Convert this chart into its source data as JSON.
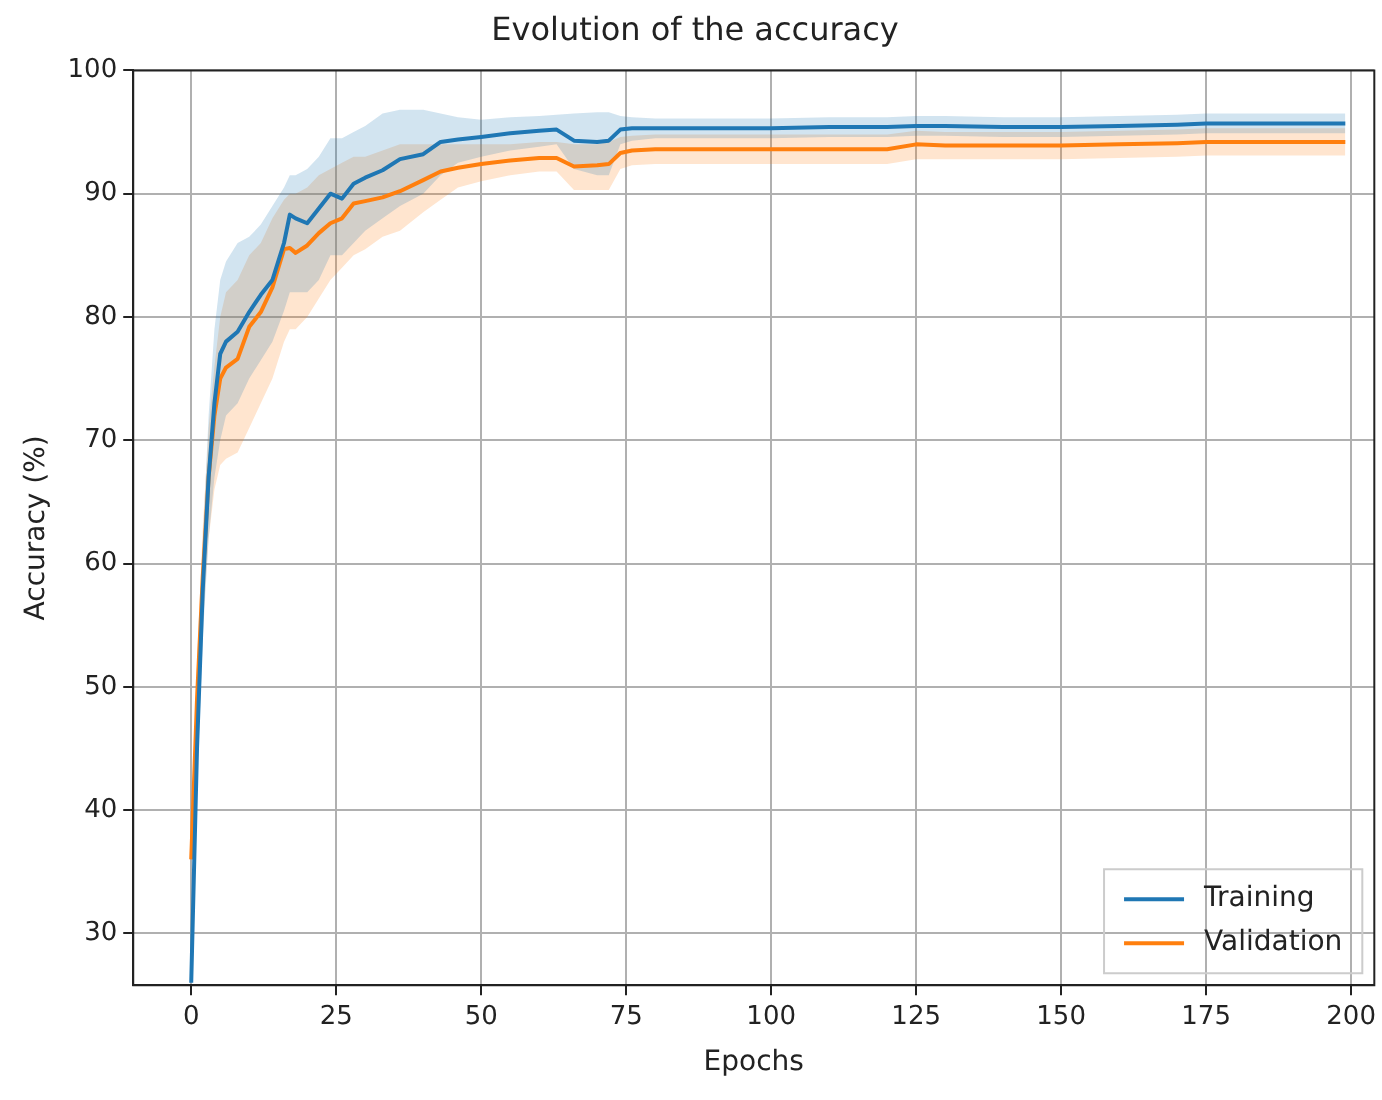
{
  "chart_data": {
    "type": "line",
    "title": "Evolution of the accuracy",
    "xlabel": "Epochs",
    "ylabel": "Accuracy (%)",
    "x": [
      0,
      1,
      2,
      3,
      4,
      5,
      6,
      8,
      10,
      12,
      14,
      16,
      17,
      18,
      20,
      22,
      24,
      26,
      28,
      30,
      33,
      36,
      40,
      43,
      46,
      50,
      55,
      60,
      63,
      66,
      70,
      72,
      74,
      76,
      80,
      90,
      100,
      110,
      120,
      125,
      130,
      140,
      150,
      160,
      170,
      175,
      180,
      190,
      199
    ],
    "series": [
      {
        "name": "Training",
        "color": "#1f77b4",
        "values": [
          26,
          45,
          58,
          67,
          73,
          77,
          78,
          78.8,
          80.4,
          81.8,
          83,
          86,
          88.3,
          88,
          87.6,
          88.8,
          90,
          89.6,
          90.8,
          91.3,
          91.9,
          92.8,
          93.2,
          94.2,
          94.4,
          94.6,
          94.9,
          95.1,
          95.2,
          94.3,
          94.2,
          94.3,
          95.2,
          95.3,
          95.3,
          95.3,
          95.3,
          95.4,
          95.4,
          95.5,
          95.5,
          95.4,
          95.4,
          95.5,
          95.6,
          95.7,
          95.7,
          95.7,
          95.7
        ],
        "lower": [
          26,
          42,
          54,
          62,
          67,
          70,
          72,
          73,
          75,
          76.5,
          78,
          80.5,
          82,
          82,
          82,
          83,
          85,
          85,
          86,
          87,
          88,
          89,
          90,
          91.5,
          92.5,
          93,
          93.5,
          93.8,
          94,
          92,
          91.5,
          91.5,
          94,
          94.3,
          94.5,
          94.5,
          94.5,
          94.6,
          94.6,
          94.7,
          94.7,
          94.6,
          94.6,
          94.7,
          94.8,
          94.9,
          94.9,
          94.9,
          94.9
        ],
        "upper": [
          26,
          48,
          62,
          72,
          79,
          83,
          84.5,
          86,
          86.5,
          87.5,
          89,
          90.5,
          91.5,
          91.5,
          92,
          93,
          94.5,
          94.5,
          95,
          95.5,
          96.5,
          96.8,
          96.8,
          96.5,
          96.2,
          96,
          96.2,
          96.3,
          96.4,
          96.5,
          96.6,
          96.6,
          96.3,
          96.2,
          96.1,
          96.1,
          96.1,
          96.2,
          96.2,
          96.3,
          96.3,
          96.2,
          96.2,
          96.3,
          96.4,
          96.5,
          96.5,
          96.5,
          96.5
        ]
      },
      {
        "name": "Validation",
        "color": "#ff7f0e",
        "values": [
          36,
          49,
          59,
          67,
          72,
          75,
          75.9,
          76.6,
          79.2,
          80.4,
          82.4,
          85.5,
          85.6,
          85.2,
          85.8,
          86.8,
          87.6,
          88,
          89.2,
          89.4,
          89.7,
          90.2,
          91.1,
          91.8,
          92.1,
          92.4,
          92.7,
          92.9,
          92.9,
          92.2,
          92.3,
          92.4,
          93.3,
          93.5,
          93.6,
          93.6,
          93.6,
          93.6,
          93.6,
          94,
          93.9,
          93.9,
          93.9,
          94,
          94.1,
          94.2,
          94.2,
          94.2,
          94.2
        ],
        "lower": [
          36,
          46,
          55,
          62,
          66,
          68,
          68.5,
          69,
          71,
          73,
          75,
          78,
          79,
          79,
          80,
          81.5,
          83,
          84,
          85,
          85.5,
          86.5,
          87,
          88.5,
          89.5,
          90.5,
          91,
          91.5,
          91.8,
          91.8,
          90.3,
          90.3,
          90.3,
          92,
          92.3,
          92.4,
          92.4,
          92.4,
          92.4,
          92.4,
          92.8,
          92.8,
          92.8,
          92.8,
          92.9,
          93,
          93.1,
          93.1,
          93.1,
          93.1
        ],
        "upper": [
          36,
          52,
          63,
          71,
          76,
          80,
          82,
          83,
          85,
          86,
          88,
          89.5,
          90,
          90,
          90.5,
          91.5,
          92,
          92.5,
          93,
          93,
          93.5,
          94,
          94,
          94,
          94,
          94,
          94,
          94.2,
          94.2,
          94,
          94,
          94.2,
          94.6,
          94.7,
          94.8,
          94.8,
          94.8,
          94.8,
          94.8,
          95.1,
          95,
          95,
          95,
          95.1,
          95.2,
          95.3,
          95.3,
          95.3,
          95.3
        ]
      }
    ],
    "xlim": [
      -10,
      204
    ],
    "xticks": [
      0,
      25,
      50,
      75,
      100,
      125,
      150,
      175,
      200
    ],
    "ylim": [
      25.8,
      100
    ],
    "yticks": [
      30,
      40,
      50,
      60,
      70,
      80,
      90,
      100
    ],
    "grid": true,
    "legend": "bottom right"
  }
}
